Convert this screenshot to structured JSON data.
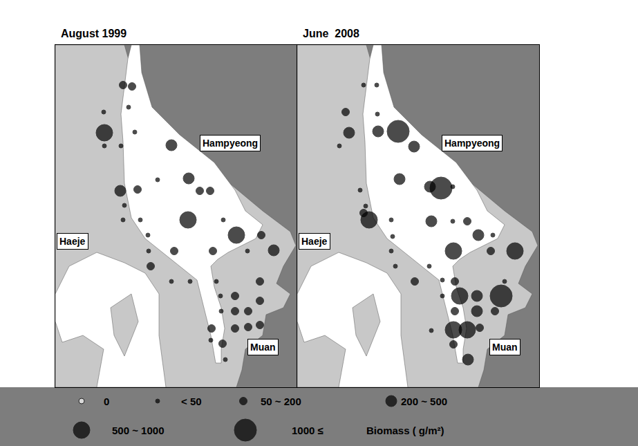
{
  "chart_data": [
    {
      "type": "scatter",
      "title": "August 1999",
      "xlim": [
        0,
        350
      ],
      "ylim": [
        495,
        0
      ],
      "tick_labels": false,
      "places": [
        "Hampyeong",
        "Haeje",
        "Muan"
      ],
      "x": [
        98,
        111,
        70,
        106,
        71,
        115,
        71,
        95,
        168,
        148,
        193,
        94,
        119,
        209,
        224,
        100,
        98,
        123,
        192,
        243,
        262,
        298,
        134,
        172,
        135,
        228,
        278,
        316,
        138,
        168,
        195,
        233,
        296,
        260,
        239,
        260,
        279,
        296,
        240,
        260,
        279,
        296,
        226,
        242,
        225,
        246
      ],
      "y": [
        58,
        60,
        97,
        90,
        127,
        126,
        146,
        146,
        145,
        195,
        193,
        211,
        209,
        211,
        211,
        232,
        253,
        253,
        253,
        253,
        275,
        275,
        275,
        298,
        298,
        298,
        298,
        297,
        320,
        342,
        342,
        342,
        342,
        363,
        363,
        385,
        385,
        370,
        385,
        410,
        408,
        405,
        410,
        432,
        427,
        455
      ],
      "biomass_class": [
        "50 ~ 200",
        "50 ~ 200",
        "< 50",
        "< 50",
        "500 ~ 1000",
        "< 50",
        "< 50",
        "< 50",
        "200 ~ 500",
        "< 50",
        "200 ~ 500",
        "200 ~ 500",
        "50 ~ 200",
        "50 ~ 200",
        "50 ~ 200",
        "< 50",
        "< 50",
        "< 50",
        "500 ~ 1000",
        "< 50",
        "500 ~ 1000",
        "50 ~ 200",
        "< 50",
        "50 ~ 200",
        "< 50",
        "50 ~ 200",
        "< 50",
        "200 ~ 500",
        "50 ~ 200",
        "< 50",
        "< 50",
        "< 50",
        "50 ~ 200",
        "50 ~ 200",
        "< 50",
        "50 ~ 200",
        "50 ~ 200",
        "50 ~ 200",
        "< 50",
        "50 ~ 200",
        "50 ~ 200",
        "50 ~ 200",
        "50 ~ 200",
        "50 ~ 200",
        "< 50",
        "< 50"
      ]
    },
    {
      "type": "scatter",
      "title": "June  2008",
      "xlim": [
        0,
        350
      ],
      "ylim": [
        495,
        0
      ],
      "tick_labels": false,
      "places": [
        "Hampyeong",
        "Haeje",
        "Muan"
      ],
      "x": [
        96,
        115,
        70,
        116,
        75,
        117,
        146,
        169,
        61,
        91,
        148,
        208,
        192,
        225,
        99,
        104,
        96,
        136,
        194,
        225,
        246,
        262,
        138,
        283,
        226,
        315,
        280,
        136,
        142,
        170,
        191,
        210,
        228,
        235,
        260,
        295,
        300,
        260,
        286,
        228,
        210,
        226,
        246,
        264,
        226,
        247,
        194
      ],
      "y": [
        58,
        58,
        97,
        100,
        127,
        125,
        125,
        147,
        146,
        210,
        194,
        207,
        205,
        205,
        233,
        253,
        243,
        253,
        255,
        255,
        255,
        275,
        277,
        275,
        298,
        298,
        298,
        298,
        320,
        342,
        320,
        340,
        342,
        363,
        363,
        363,
        342,
        385,
        385,
        385,
        363,
        412,
        412,
        409,
        433,
        455,
        413
      ],
      "biomass_class": [
        "< 50",
        "< 50",
        "50 ~ 200",
        "< 50",
        "200 ~ 500",
        "200 ~ 500",
        "1000 ≤",
        "200 ~ 500",
        "< 50",
        "< 50",
        "200 ~ 500",
        "1000 ≤",
        "200 ~ 500",
        "< 50",
        "< 50",
        "500 ~ 1000",
        "50 ~ 200",
        "< 50",
        "200 ~ 500",
        "< 50",
        "50 ~ 200",
        "200 ~ 500",
        "< 50",
        "< 50",
        "500 ~ 1000",
        "500 ~ 1000",
        "50 ~ 200",
        "< 50",
        "< 50",
        "50 ~ 200",
        "< 50",
        "< 50",
        "50 ~ 200",
        "500 ~ 1000",
        "200 ~ 500",
        "1000 ≤",
        "< 50",
        "200 ~ 500",
        "50 ~ 200",
        "50 ~ 200",
        "< 50",
        "500 ~ 1000",
        "500 ~ 1000",
        "50 ~ 200",
        "50 ~ 200",
        "200 ~ 500",
        "< 50"
      ]
    }
  ],
  "size_key": {
    "classes": [
      "0",
      "< 50",
      "50 ~ 200",
      "200 ~ 500",
      "500 ~ 1000",
      "1000 ≤"
    ],
    "title": "Biomass ( g/m²)"
  }
}
